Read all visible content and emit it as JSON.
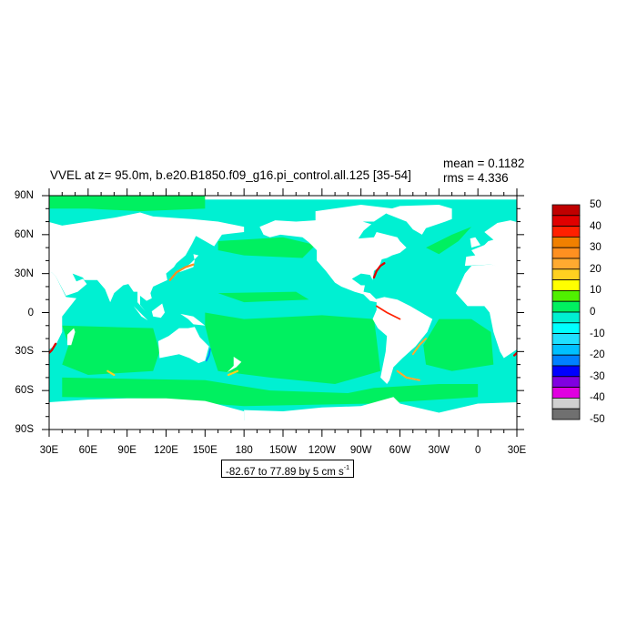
{
  "title": "VVEL at z=  95.0m, b.e20.B1850.f09_g16.pi_control.all.125 [35-54]",
  "stats": {
    "mean": "mean = 0.1182",
    "rms": "rms = 4.336"
  },
  "map": {
    "x_tick_labels": [
      "30E",
      "60E",
      "90E",
      "120E",
      "150E",
      "180",
      "150W",
      "120W",
      "90W",
      "60W",
      "30W",
      "0",
      "30E"
    ],
    "y_tick_labels": [
      "90N",
      "60N",
      "30N",
      "0",
      "30S",
      "60S",
      "90S"
    ],
    "land_color": "#ffffff",
    "ocean_small_negative_color": "#00f0d2",
    "ocean_small_positive_color": "#00f060"
  },
  "colorbar": {
    "labels": [
      "50",
      "40",
      "30",
      "20",
      "10",
      "0",
      "-10",
      "-20",
      "-30",
      "-40",
      "-50"
    ],
    "colors": [
      "#c00000",
      "#e00000",
      "#ff2000",
      "#f08000",
      "#ff9020",
      "#ffaa30",
      "#ffd020",
      "#ffff00",
      "#50f000",
      "#00f060",
      "#00f0d2",
      "#00ffff",
      "#20e0ff",
      "#00c0ff",
      "#0080ff",
      "#0000ff",
      "#8000e0",
      "#e000e0",
      "#d0d0d0",
      "#707070"
    ]
  },
  "contour_info": {
    "text": "-82.67 to 77.89 by 5 cm s",
    "superscript": "-1"
  }
}
